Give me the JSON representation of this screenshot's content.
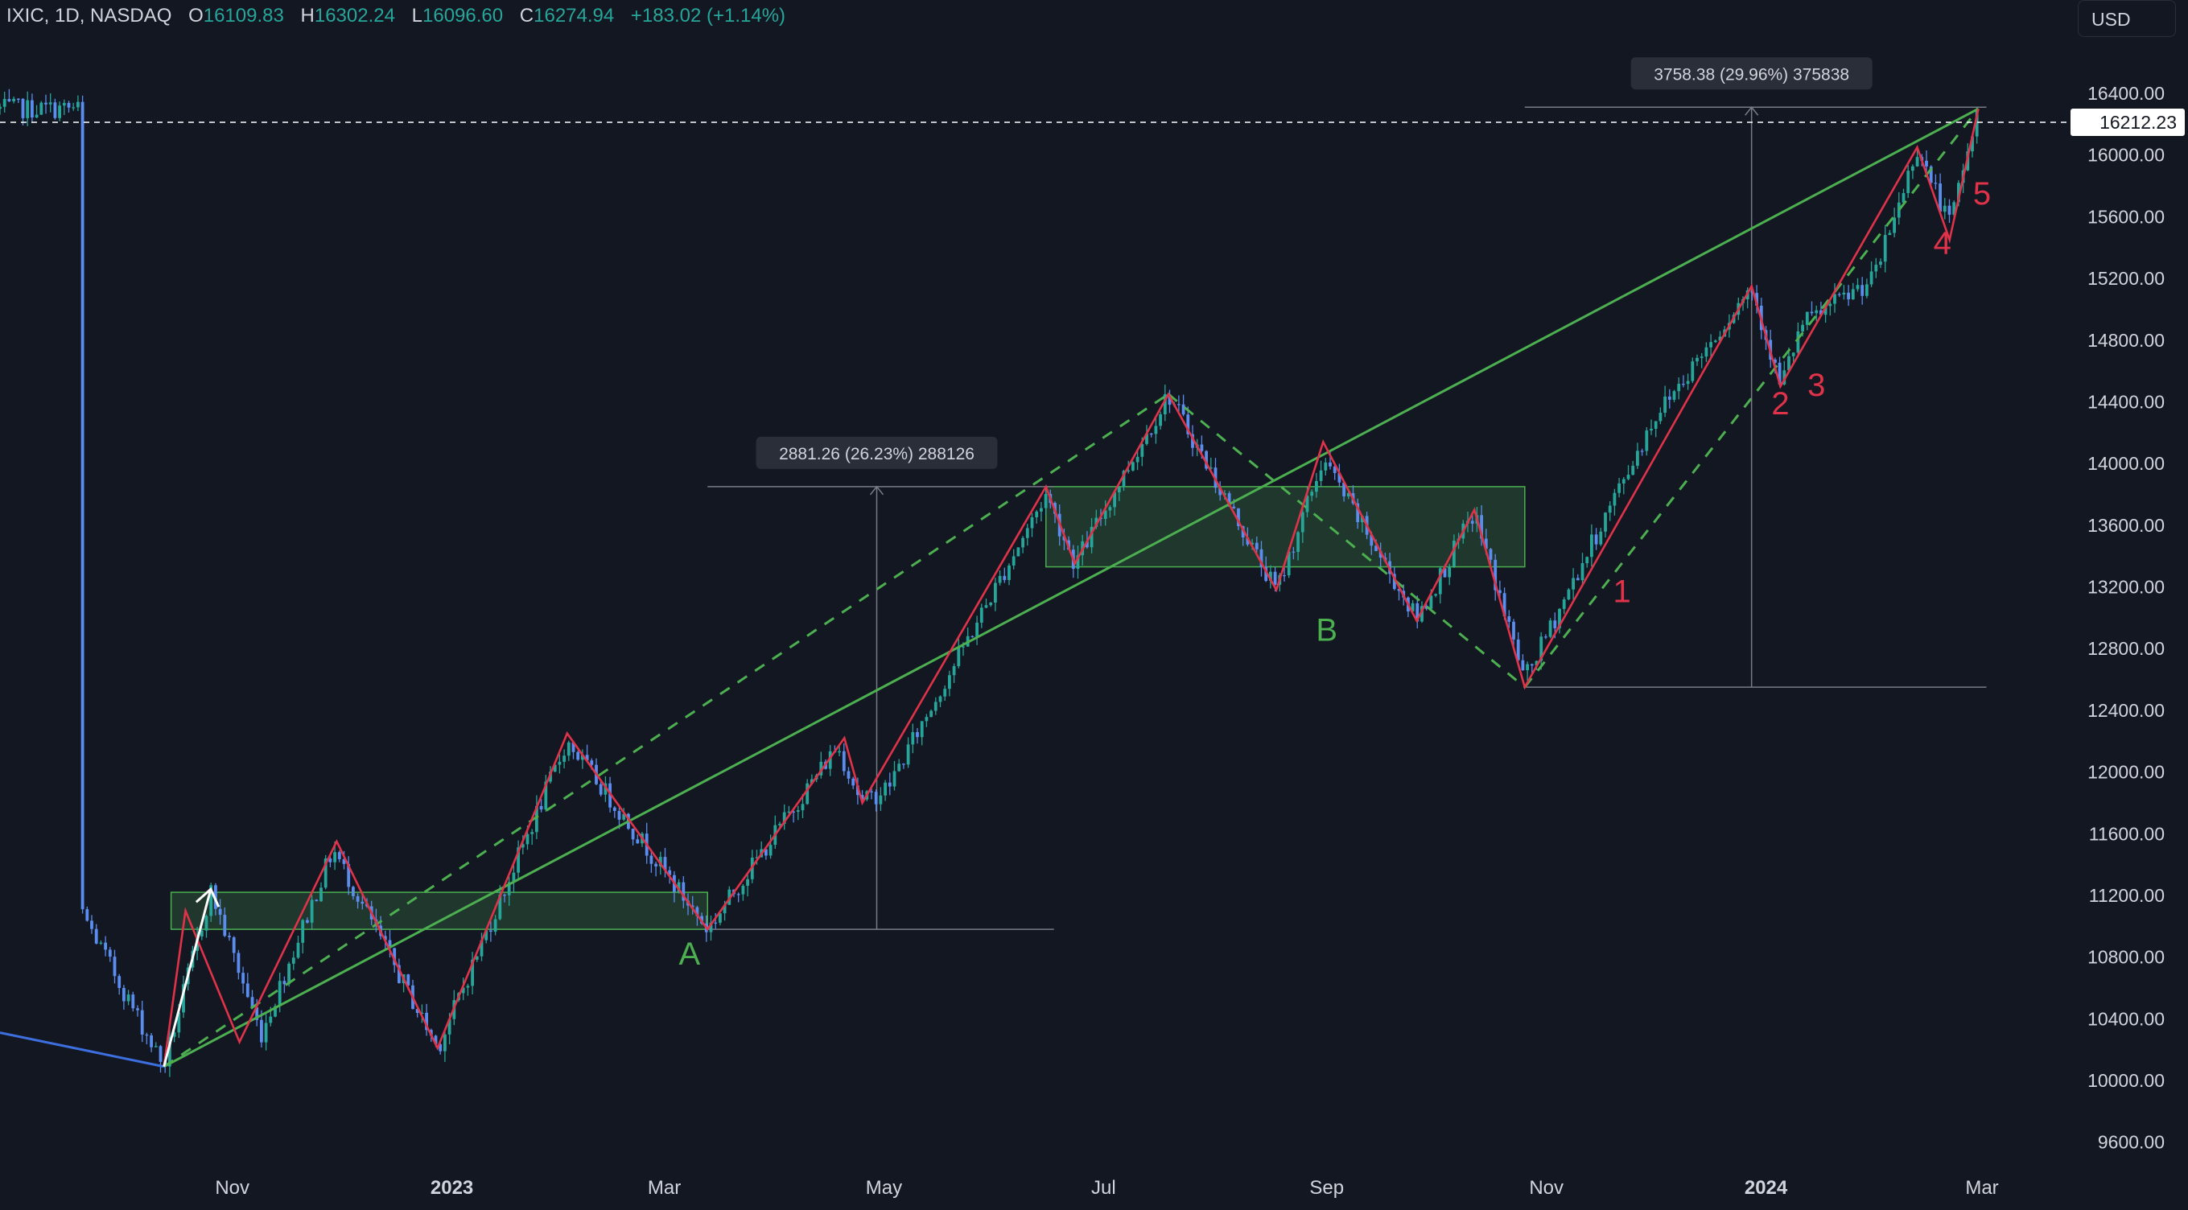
{
  "header": {
    "symbol": "IXIC, 1D, NASDAQ",
    "open_label": "O",
    "open": "16109.83",
    "high_label": "H",
    "high": "16302.24",
    "low_label": "L",
    "low": "16096.60",
    "close_label": "C",
    "close": "16274.94",
    "change": "+183.02 (+1.14%)",
    "currency": "USD"
  },
  "colors": {
    "background": "#131722",
    "up_candle": "#26a69a",
    "down_candle": "#5b8def",
    "green_line": "#4caf50",
    "red_line": "#e0334a",
    "axis_text": "#d1d4dc"
  },
  "chart_data": {
    "type": "candlestick",
    "title": "IXIC, 1D, NASDAQ",
    "x_ticks": [
      "Nov",
      "2023",
      "Mar",
      "May",
      "Jul",
      "Sep",
      "Nov",
      "2024",
      "Mar"
    ],
    "y_ticks": [
      "16400.00",
      "16000.00",
      "15600.00",
      "15200.00",
      "14800.00",
      "14400.00",
      "14000.00",
      "13600.00",
      "13200.00",
      "12800.00",
      "12400.00",
      "12000.00",
      "11600.00",
      "11200.00",
      "10800.00",
      "10400.00",
      "10000.00",
      "9600.00"
    ],
    "ylim": [
      9450,
      16650
    ],
    "current_price_label": "16212.23",
    "price_path": [
      [
        "2022-09-20",
        11100
      ],
      [
        "2022-10-13",
        10090
      ],
      [
        "2022-10-26",
        11230
      ],
      [
        "2022-11-09",
        10300
      ],
      [
        "2022-11-29",
        11500
      ],
      [
        "2022-12-28",
        10210
      ],
      [
        "2023-02-02",
        12200
      ],
      [
        "2023-03-13",
        10980
      ],
      [
        "2023-04-18",
        12170
      ],
      [
        "2023-04-25",
        11800
      ],
      [
        "2023-05-02",
        11900
      ],
      [
        "2023-06-15",
        13800
      ],
      [
        "2023-06-23",
        13350
      ],
      [
        "2023-07-19",
        14450
      ],
      [
        "2023-08-18",
        13170
      ],
      [
        "2023-08-31",
        14030
      ],
      [
        "2023-09-26",
        12990
      ],
      [
        "2023-10-12",
        13680
      ],
      [
        "2023-10-26",
        12600
      ],
      [
        "2023-12-01",
        14300
      ],
      [
        "2023-12-28",
        15150
      ],
      [
        "2024-01-05",
        14500
      ],
      [
        "2024-01-11",
        14900
      ],
      [
        "2024-01-31",
        15200
      ],
      [
        "2024-02-12",
        16050
      ],
      [
        "2024-02-21",
        15550
      ],
      [
        "2024-02-29",
        16300
      ]
    ],
    "zigzag_red": [
      [
        "2022-10-13",
        10090
      ],
      [
        "2022-10-19",
        11100
      ],
      [
        "2022-11-03",
        10250
      ],
      [
        "2022-11-30",
        11550
      ],
      [
        "2022-12-28",
        10210
      ],
      [
        "2023-02-02",
        12250
      ],
      [
        "2023-03-13",
        10980
      ],
      [
        "2023-04-20",
        12220
      ],
      [
        "2023-04-25",
        11800
      ],
      [
        "2023-06-15",
        13850
      ],
      [
        "2023-06-23",
        13350
      ],
      [
        "2023-07-19",
        14450
      ],
      [
        "2023-08-18",
        13180
      ],
      [
        "2023-08-31",
        14140
      ],
      [
        "2023-09-26",
        12980
      ],
      [
        "2023-10-12",
        13700
      ],
      [
        "2023-10-26",
        12550
      ],
      [
        "2023-12-28",
        15150
      ],
      [
        "2024-01-05",
        14500
      ],
      [
        "2024-02-12",
        16050
      ],
      [
        "2024-02-21",
        15450
      ],
      [
        "2024-02-29",
        16300
      ]
    ],
    "trend_lines": [
      {
        "style": "solid",
        "from": [
          "2022-10-13",
          10090
        ],
        "to": [
          "2024-02-29",
          16300
        ]
      },
      {
        "style": "dashed",
        "from": [
          "2022-10-13",
          10090
        ],
        "to": [
          "2023-07-19",
          14450
        ]
      },
      {
        "style": "dashed",
        "from": [
          "2023-07-19",
          14450
        ],
        "to": [
          "2023-10-26",
          12550
        ]
      },
      {
        "style": "dashed",
        "from": [
          "2023-10-26",
          12550
        ],
        "to": [
          "2024-02-29",
          16300
        ]
      }
    ],
    "zones": [
      {
        "from": [
          "2022-10-15",
          11220
        ],
        "to": [
          "2023-03-13",
          10980
        ]
      },
      {
        "from": [
          "2023-06-15",
          13850
        ],
        "to": [
          "2023-10-26",
          13330
        ]
      }
    ],
    "measures": [
      {
        "label": "2881.26 (26.23%) 288126",
        "from": [
          "2023-03-13",
          10980
        ],
        "to": [
          "2023-06-15",
          13850
        ]
      },
      {
        "label": "3758.38 (29.96%) 375838",
        "from": [
          "2023-10-26",
          12550
        ],
        "to": [
          "2024-02-29",
          16310
        ]
      }
    ],
    "wave_labels": [
      {
        "text": "A",
        "date": "2023-03-08",
        "price": 10750,
        "color": "green"
      },
      {
        "text": "B",
        "date": "2023-09-01",
        "price": 12850,
        "color": "green"
      },
      {
        "text": "1",
        "date": "2023-11-22",
        "price": 13100,
        "color": "red"
      },
      {
        "text": "2",
        "date": "2024-01-05",
        "price": 14320,
        "color": "red"
      },
      {
        "text": "3",
        "date": "2024-01-15",
        "price": 14440,
        "color": "red"
      },
      {
        "text": "4",
        "date": "2024-02-19",
        "price": 15360,
        "color": "red"
      },
      {
        "text": "5",
        "date": "2024-03-01",
        "price": 15680,
        "color": "red"
      }
    ]
  }
}
